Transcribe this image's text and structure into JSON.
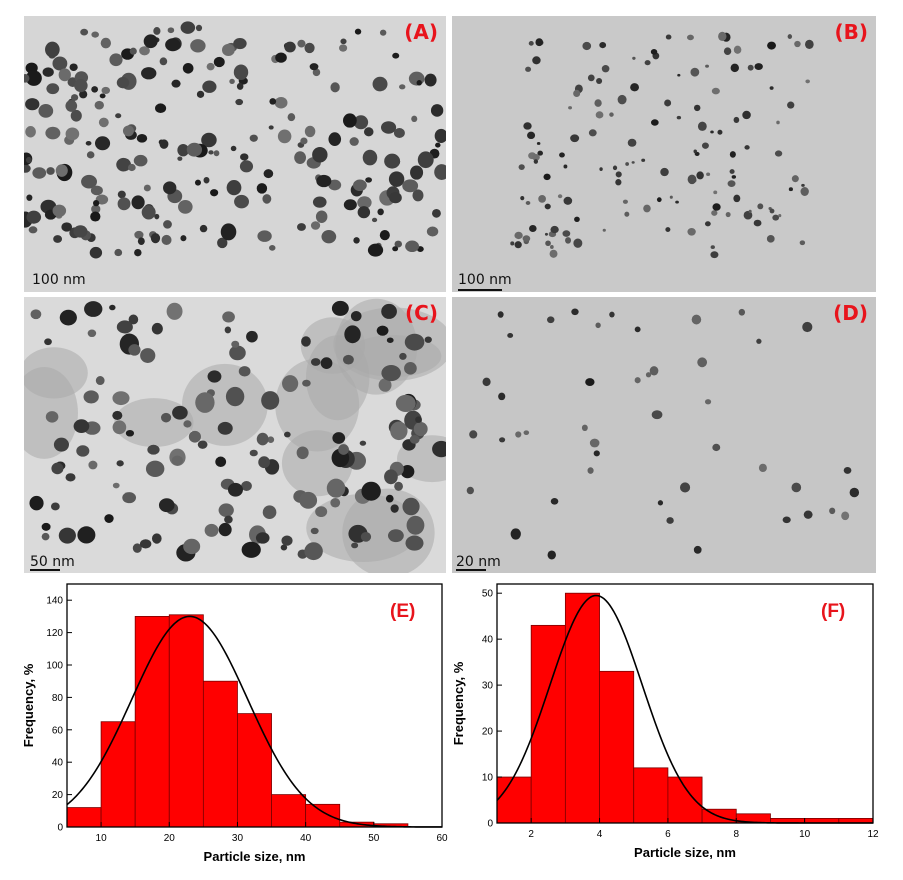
{
  "panels": {
    "A": {
      "label": "(A)",
      "scale": "100 nm"
    },
    "B": {
      "label": "(B)",
      "scale": "100 nm"
    },
    "C": {
      "label": "(C)",
      "scale": "50 nm"
    },
    "D": {
      "label": "(D)",
      "scale": "20 nm"
    }
  },
  "colors": {
    "bar": "#ff0000",
    "bar_edge": "#7a0000",
    "label": "#e8141c",
    "fit": "#000000"
  },
  "chart_data": [
    {
      "type": "bar",
      "label": "(E)",
      "xlabel": "Particle size, nm",
      "ylabel": "Frequency, %",
      "xlim": [
        5,
        60
      ],
      "ylim": [
        0,
        150
      ],
      "xticks": [
        10,
        20,
        30,
        40,
        50,
        60
      ],
      "yticks": [
        0,
        20,
        40,
        60,
        80,
        100,
        120,
        140
      ],
      "bin_width": 5,
      "bins": [
        5,
        10,
        15,
        20,
        25,
        30,
        35,
        40,
        45,
        50
      ],
      "values": [
        12,
        65,
        130,
        131,
        90,
        70,
        20,
        14,
        3,
        2
      ],
      "fit": {
        "type": "gaussian",
        "mean": 23,
        "sd": 8.5,
        "peak": 130
      }
    },
    {
      "type": "bar",
      "label": "(F)",
      "xlabel": "Particle size, nm",
      "ylabel": "Frequency, %",
      "xlim": [
        1,
        12
      ],
      "ylim": [
        0,
        52
      ],
      "xticks": [
        2,
        4,
        6,
        8,
        10,
        12
      ],
      "yticks": [
        0,
        10,
        20,
        30,
        40,
        50
      ],
      "bin_width": 1,
      "bins": [
        1,
        2,
        3,
        4,
        5,
        6,
        7,
        8,
        9,
        10,
        11
      ],
      "values": [
        10,
        43,
        50,
        33,
        12,
        10,
        3,
        2,
        1,
        1,
        1
      ],
      "fit": {
        "type": "gaussian",
        "mean": 3.9,
        "sd": 1.35,
        "peak": 49.5
      }
    }
  ]
}
